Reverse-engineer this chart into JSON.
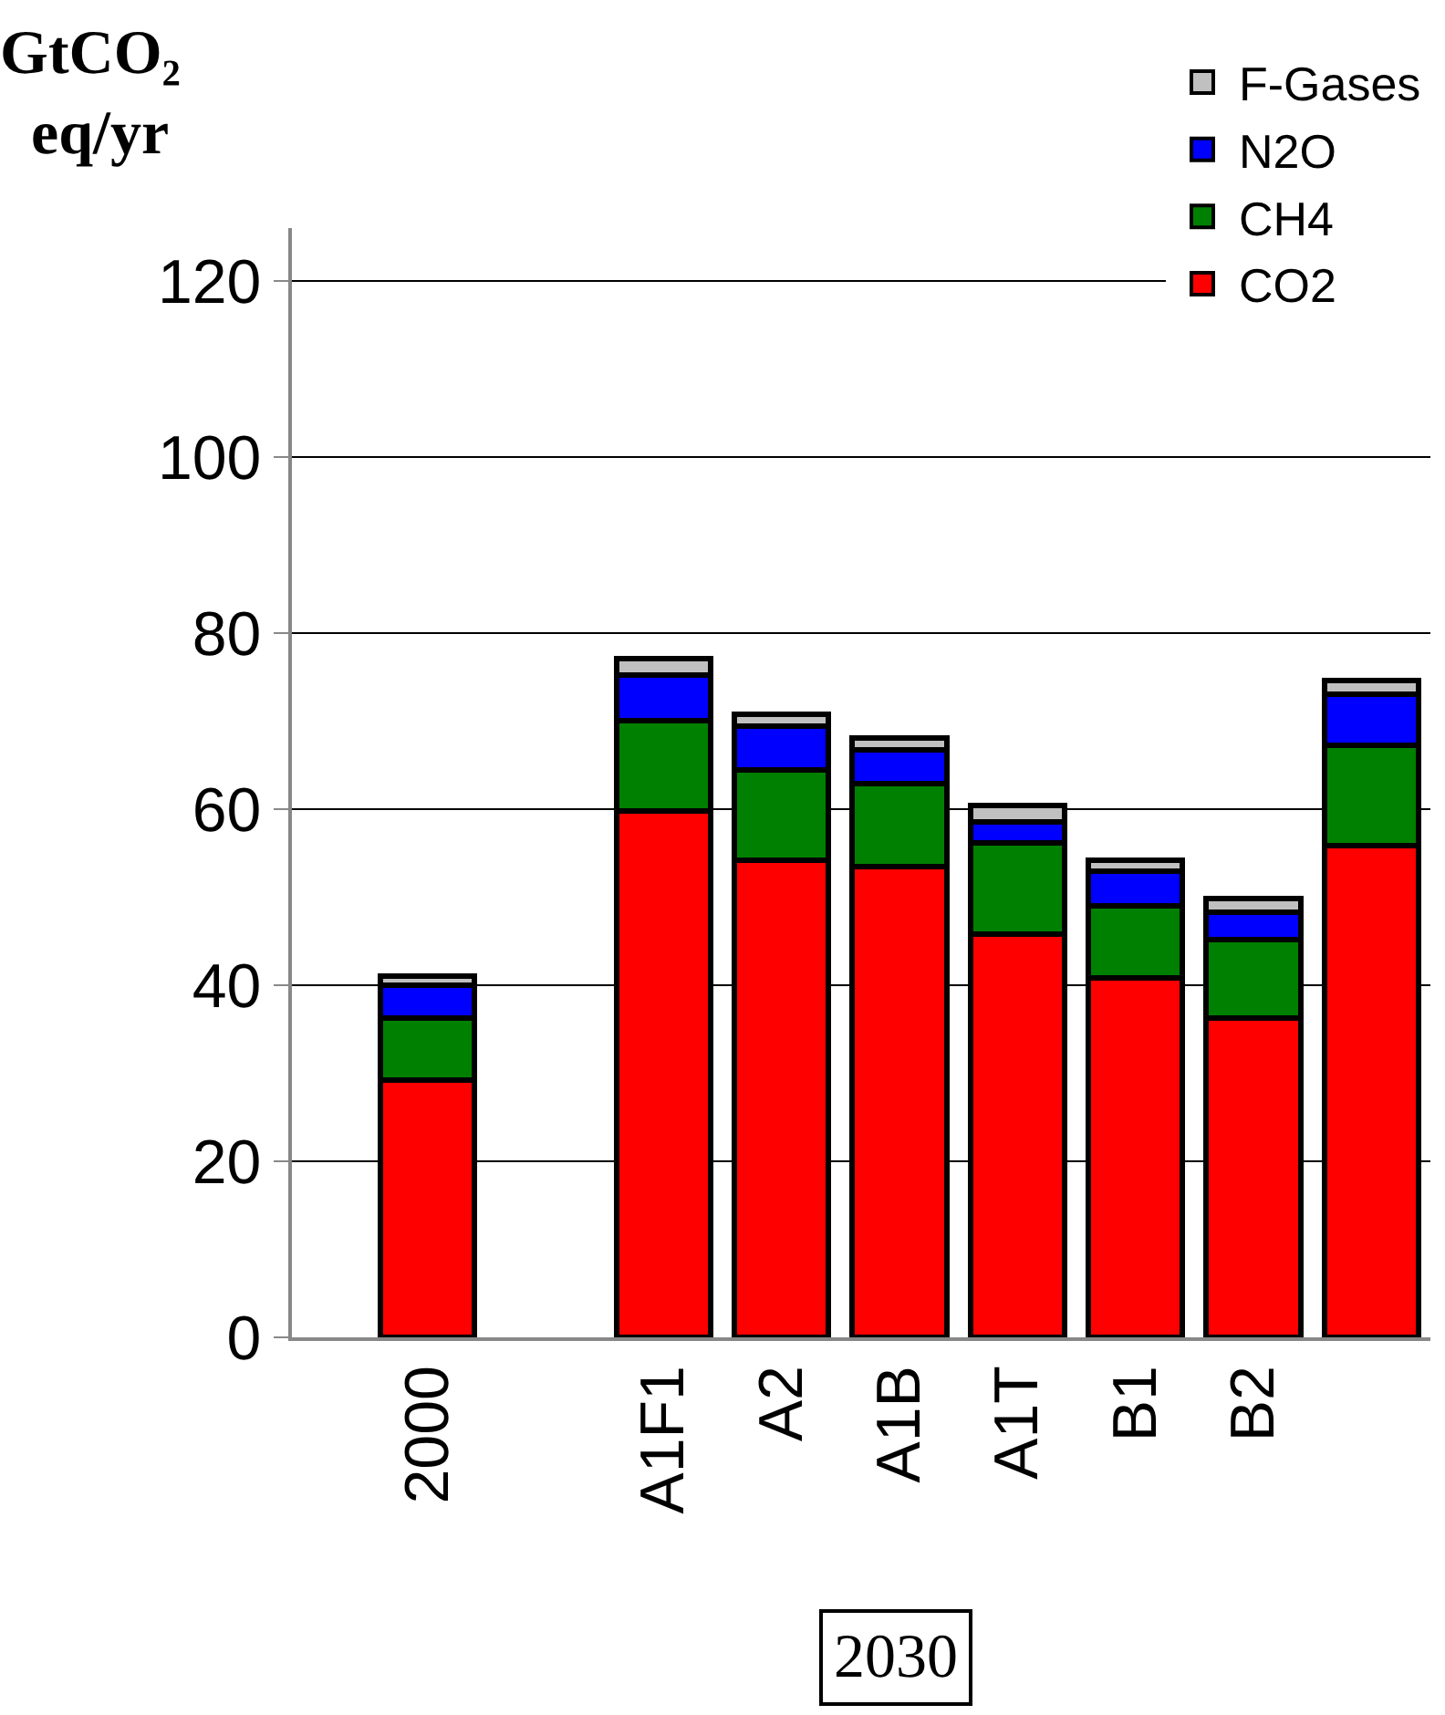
{
  "chart_data": {
    "type": "bar",
    "stacked": true,
    "ylabel": "GtCO₂ eq/yr",
    "categories": [
      "2000",
      null,
      "A1F1",
      "A2",
      "A1B",
      "A1T",
      "B1",
      "B2",
      null
    ],
    "series": [
      {
        "name": "CO2",
        "color": "#ff0000",
        "values": [
          29.2,
          null,
          59.8,
          54.2,
          53.5,
          45.8,
          40.8,
          36.3,
          55.8
        ]
      },
      {
        "name": "CH4",
        "color": "#008000",
        "values": [
          7.1,
          null,
          10.2,
          10.2,
          9.4,
          10.4,
          8.2,
          8.9,
          11.5
        ]
      },
      {
        "name": "N2O",
        "color": "#0000ff",
        "values": [
          3.7,
          null,
          5.2,
          5.0,
          3.8,
          2.3,
          3.9,
          3.1,
          5.8
        ]
      },
      {
        "name": "F-Gases",
        "color": "#c0c0c0",
        "values": [
          1.0,
          null,
          1.9,
          1.4,
          1.4,
          1.9,
          1.3,
          1.5,
          1.5
        ]
      }
    ],
    "annotations": [
      "2030"
    ],
    "ylim": [
      0,
      126
    ],
    "yticks": [
      0,
      20,
      40,
      60,
      80,
      100,
      120
    ],
    "grid": "y",
    "legend": "top right"
  }
}
